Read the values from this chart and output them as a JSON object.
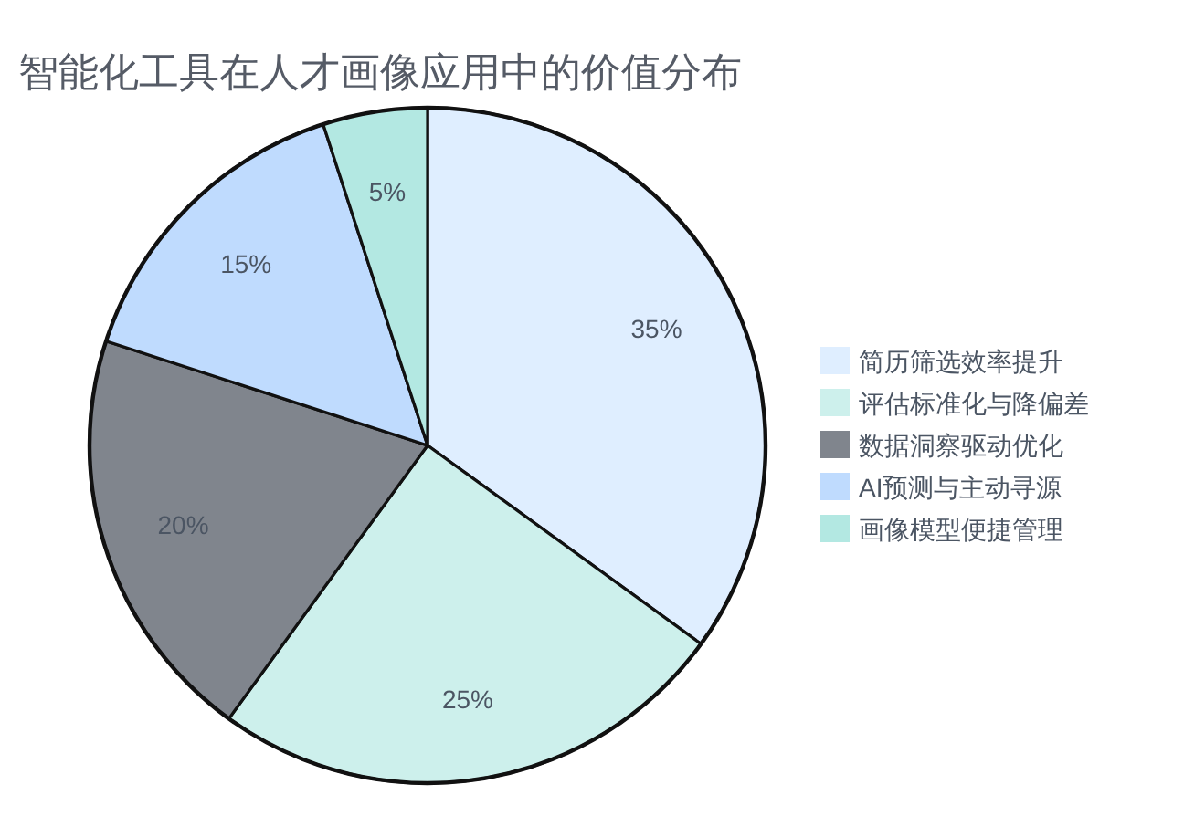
{
  "chart_data": {
    "type": "pie",
    "title": "智能化工具在人才画像应用中的价值分布",
    "categories": [
      "简历筛选效率提升",
      "评估标准化与降偏差",
      "数据洞察驱动优化",
      "AI预测与主动寻源",
      "画像模型便捷管理"
    ],
    "values": [
      35,
      25,
      20,
      15,
      5
    ],
    "colors": [
      "#dfeeff",
      "#cdf0ec",
      "#80858d",
      "#bfdbfe",
      "#b3e8e2"
    ],
    "value_labels": [
      "35%",
      "25%",
      "20%",
      "15%",
      "5%"
    ],
    "legend": "right"
  }
}
